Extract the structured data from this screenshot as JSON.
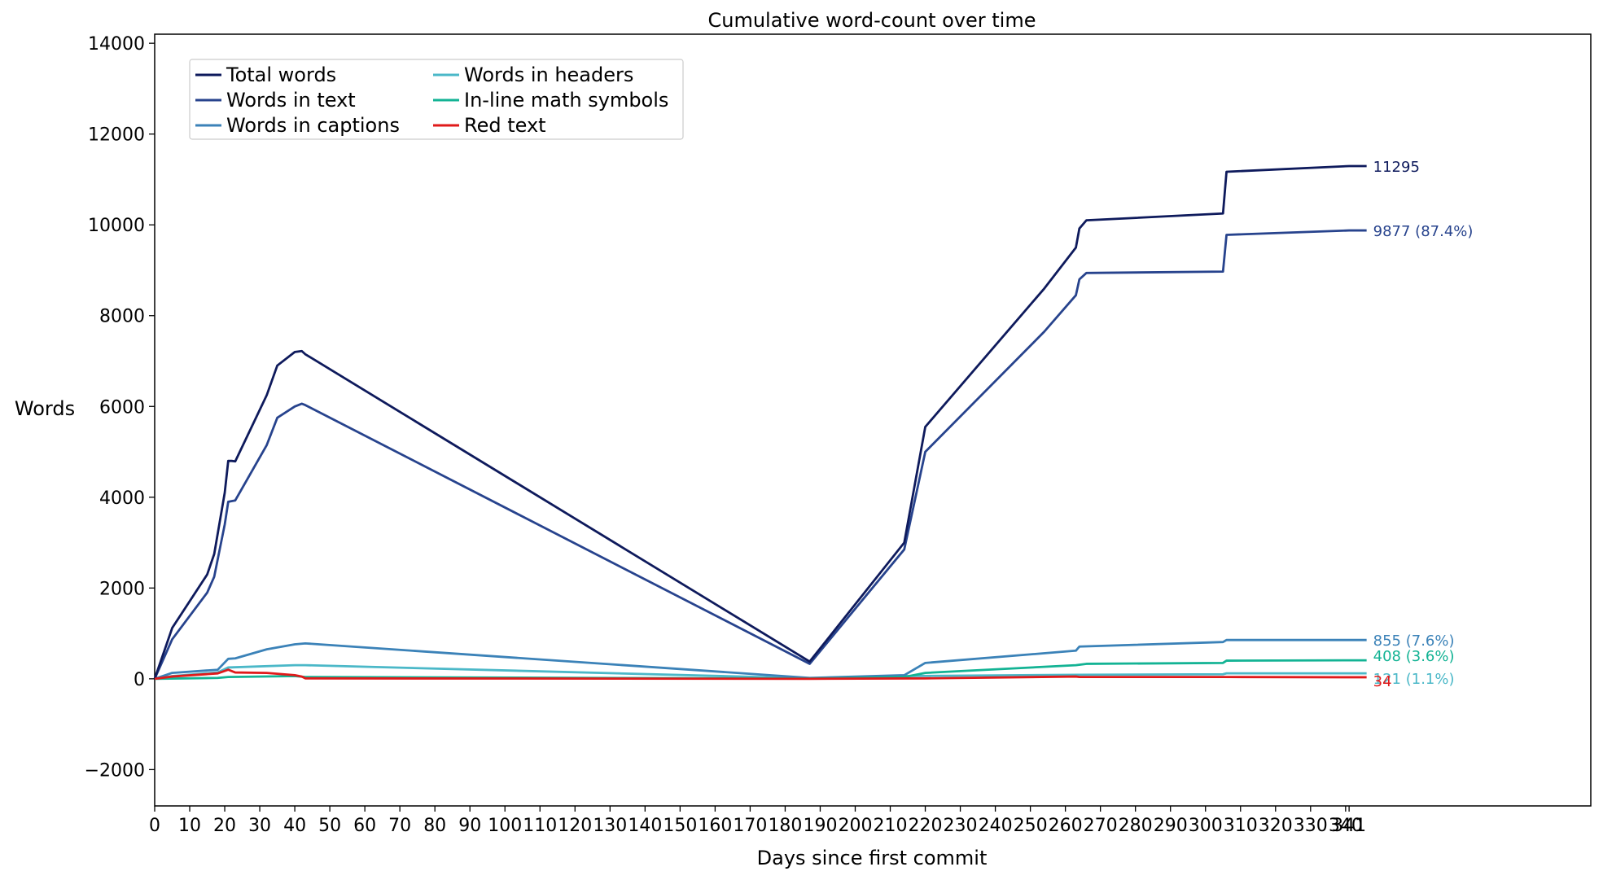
{
  "chart_data": {
    "type": "line",
    "title": "Cumulative word-count over time",
    "xlabel": "Days since first commit",
    "ylabel": "Words",
    "xlim": [
      0,
      410
    ],
    "ylim": [
      -2800,
      14200
    ],
    "xticks": [
      0,
      10,
      20,
      30,
      40,
      50,
      60,
      70,
      80,
      90,
      100,
      110,
      120,
      130,
      140,
      150,
      160,
      170,
      180,
      190,
      200,
      210,
      220,
      230,
      240,
      250,
      260,
      270,
      280,
      290,
      300,
      310,
      320,
      330,
      340,
      341
    ],
    "xtick_labels": [
      "0",
      "10",
      "20",
      "30",
      "40",
      "50",
      "60",
      "70",
      "80",
      "90",
      "100",
      "110",
      "120",
      "130",
      "140",
      "150",
      "160",
      "170",
      "180",
      "190",
      "200",
      "210",
      "220",
      "230",
      "240",
      "250",
      "260",
      "270",
      "280",
      "290",
      "300",
      "310",
      "320",
      "330",
      "340",
      "341"
    ],
    "yticks": [
      -2000,
      0,
      2000,
      4000,
      6000,
      8000,
      10000,
      12000,
      14000
    ],
    "ytick_labels": [
      "−2000",
      "0",
      "2000",
      "4000",
      "6000",
      "8000",
      "10000",
      "12000",
      "14000"
    ],
    "grid": false,
    "legend_position": "upper-left",
    "series": [
      {
        "name": "Total words",
        "color": "#0e1a5c",
        "end_label": "11295",
        "points": [
          [
            0,
            0
          ],
          [
            5,
            1120
          ],
          [
            15,
            2300
          ],
          [
            17,
            2750
          ],
          [
            20,
            4100
          ],
          [
            21,
            4800
          ],
          [
            22,
            4800
          ],
          [
            23,
            4790
          ],
          [
            32,
            6250
          ],
          [
            35,
            6900
          ],
          [
            40,
            7200
          ],
          [
            42,
            7220
          ],
          [
            43,
            7150
          ],
          [
            187,
            380
          ],
          [
            214,
            3000
          ],
          [
            220,
            5550
          ],
          [
            254,
            8600
          ],
          [
            263,
            9500
          ],
          [
            264,
            9920
          ],
          [
            266,
            10100
          ],
          [
            305,
            10250
          ],
          [
            306,
            11170
          ],
          [
            341,
            11295
          ],
          [
            346,
            11295
          ]
        ]
      },
      {
        "name": "Words in text",
        "color": "#27438d",
        "end_label": "9877 (87.4%)",
        "points": [
          [
            0,
            0
          ],
          [
            5,
            870
          ],
          [
            15,
            1900
          ],
          [
            17,
            2250
          ],
          [
            20,
            3400
          ],
          [
            21,
            3900
          ],
          [
            23,
            3930
          ],
          [
            32,
            5150
          ],
          [
            35,
            5750
          ],
          [
            40,
            6000
          ],
          [
            42,
            6060
          ],
          [
            43,
            6030
          ],
          [
            187,
            330
          ],
          [
            214,
            2850
          ],
          [
            220,
            5000
          ],
          [
            254,
            7650
          ],
          [
            263,
            8450
          ],
          [
            264,
            8800
          ],
          [
            266,
            8940
          ],
          [
            305,
            8970
          ],
          [
            306,
            9780
          ],
          [
            341,
            9877
          ],
          [
            346,
            9877
          ]
        ]
      },
      {
        "name": "Words in captions",
        "color": "#3b82b8",
        "end_label": "855 (7.6%)",
        "points": [
          [
            0,
            0
          ],
          [
            5,
            130
          ],
          [
            18,
            200
          ],
          [
            21,
            440
          ],
          [
            23,
            450
          ],
          [
            32,
            650
          ],
          [
            40,
            760
          ],
          [
            43,
            780
          ],
          [
            187,
            20
          ],
          [
            214,
            80
          ],
          [
            220,
            350
          ],
          [
            263,
            620
          ],
          [
            264,
            710
          ],
          [
            305,
            810
          ],
          [
            306,
            855
          ],
          [
            341,
            855
          ],
          [
            346,
            855
          ]
        ]
      },
      {
        "name": "Words in headers",
        "color": "#4bb8c8",
        "end_label": "121 (1.1%)",
        "points": [
          [
            0,
            0
          ],
          [
            5,
            60
          ],
          [
            18,
            140
          ],
          [
            21,
            250
          ],
          [
            40,
            300
          ],
          [
            43,
            300
          ],
          [
            187,
            10
          ],
          [
            214,
            60
          ],
          [
            264,
            90
          ],
          [
            305,
            100
          ],
          [
            306,
            121
          ],
          [
            341,
            121
          ],
          [
            346,
            121
          ]
        ]
      },
      {
        "name": "In-line math symbols",
        "color": "#13b394",
        "end_label": "408 (3.6%)",
        "points": [
          [
            0,
            0
          ],
          [
            18,
            20
          ],
          [
            21,
            40
          ],
          [
            40,
            60
          ],
          [
            43,
            40
          ],
          [
            187,
            5
          ],
          [
            214,
            40
          ],
          [
            220,
            130
          ],
          [
            263,
            300
          ],
          [
            266,
            330
          ],
          [
            305,
            350
          ],
          [
            306,
            400
          ],
          [
            341,
            408
          ],
          [
            346,
            408
          ]
        ]
      },
      {
        "name": "Red text",
        "color": "#e01a1a",
        "end_label": "34",
        "points": [
          [
            0,
            0
          ],
          [
            5,
            50
          ],
          [
            18,
            120
          ],
          [
            21,
            200
          ],
          [
            23,
            140
          ],
          [
            32,
            130
          ],
          [
            40,
            80
          ],
          [
            42,
            50
          ],
          [
            43,
            10
          ],
          [
            187,
            0
          ],
          [
            220,
            10
          ],
          [
            263,
            50
          ],
          [
            264,
            40
          ],
          [
            305,
            40
          ],
          [
            341,
            34
          ],
          [
            346,
            34
          ]
        ]
      }
    ]
  }
}
